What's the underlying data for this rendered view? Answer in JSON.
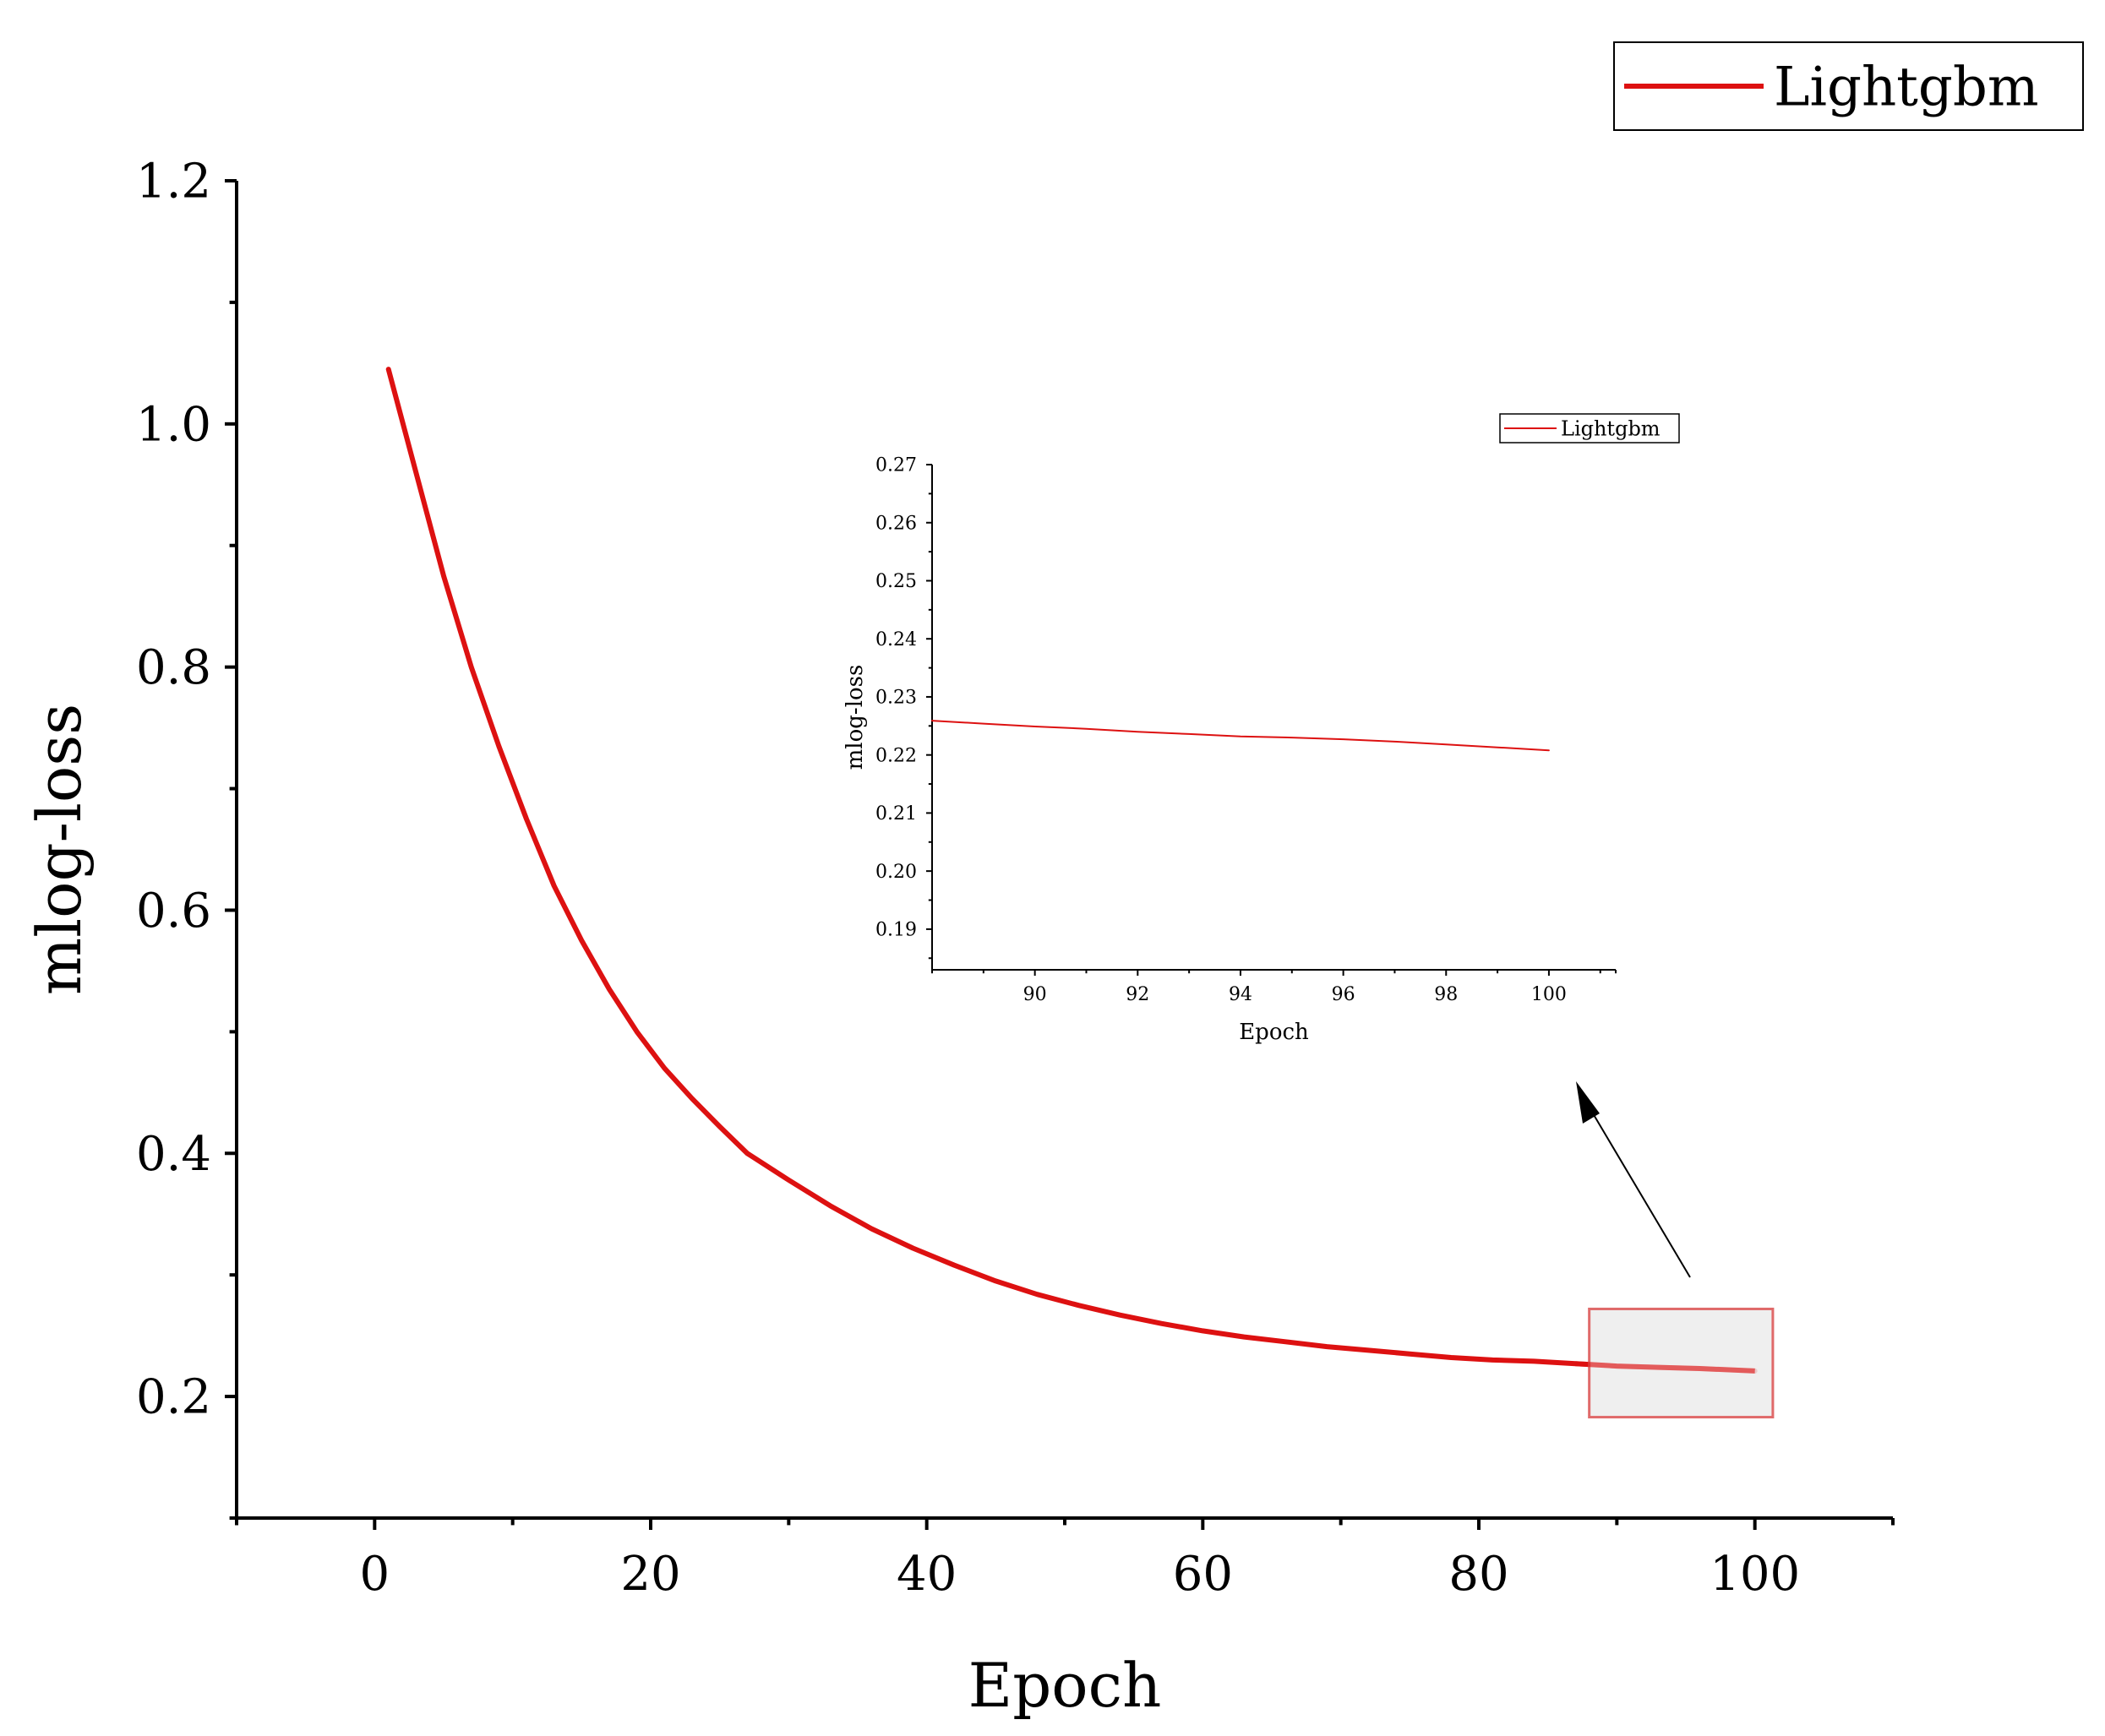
{
  "chart_data": [
    {
      "id": "main",
      "type": "line",
      "xlabel": "Epoch",
      "ylabel": "mlog-loss",
      "xlim": [
        -10,
        110
      ],
      "ylim": [
        0.1,
        1.2
      ],
      "xticks": [
        0,
        20,
        40,
        60,
        80,
        100
      ],
      "xtick_labels": [
        "0",
        "20",
        "40",
        "60",
        "80",
        "100"
      ],
      "yticks": [
        0.2,
        0.4,
        0.6,
        0.8,
        1.0,
        1.2
      ],
      "ytick_labels": [
        "0.2",
        "0.4",
        "0.6",
        "0.8",
        "1.0",
        "1.2"
      ],
      "legend_position": "top-right",
      "grid": false,
      "series": [
        {
          "name": "Lightgbm",
          "color": "#dd1111",
          "x": [
            1,
            3,
            5,
            7,
            9,
            11,
            13,
            15,
            17,
            19,
            21,
            23,
            25,
            27,
            30,
            33,
            36,
            39,
            42,
            45,
            48,
            51,
            54,
            57,
            60,
            63,
            66,
            69,
            72,
            75,
            78,
            81,
            84,
            87,
            90,
            93,
            96,
            100
          ],
          "y": [
            1.045,
            0.96,
            0.875,
            0.8,
            0.735,
            0.675,
            0.62,
            0.575,
            0.535,
            0.5,
            0.47,
            0.445,
            0.422,
            0.4,
            0.378,
            0.357,
            0.338,
            0.322,
            0.308,
            0.295,
            0.284,
            0.275,
            0.267,
            0.26,
            0.254,
            0.249,
            0.245,
            0.241,
            0.238,
            0.235,
            0.232,
            0.23,
            0.229,
            0.227,
            0.225,
            0.224,
            0.223,
            0.221
          ]
        }
      ],
      "zoom_region": {
        "xrange": [
          88,
          101.3
        ],
        "yrange": [
          0.183,
          0.272
        ]
      }
    },
    {
      "id": "inset",
      "type": "line",
      "xlabel": "Epoch",
      "ylabel": "mlog-loss",
      "xlim": [
        88,
        101.3
      ],
      "ylim": [
        0.183,
        0.27
      ],
      "xticks": [
        90,
        92,
        94,
        96,
        98,
        100
      ],
      "xtick_labels": [
        "90",
        "92",
        "94",
        "96",
        "98",
        "100"
      ],
      "yticks": [
        0.19,
        0.2,
        0.21,
        0.22,
        0.23,
        0.24,
        0.25,
        0.26,
        0.27
      ],
      "ytick_labels": [
        "0.19",
        "0.20",
        "0.21",
        "0.22",
        "0.23",
        "0.24",
        "0.25",
        "0.26",
        "0.27"
      ],
      "legend_position": "top-right",
      "grid": false,
      "series": [
        {
          "name": "Lightgbm",
          "color": "#dd1111",
          "x": [
            88,
            89,
            90,
            91,
            92,
            93,
            94,
            95,
            96,
            97,
            98,
            99,
            100
          ],
          "y": [
            0.2259,
            0.2254,
            0.2249,
            0.2245,
            0.224,
            0.2236,
            0.2232,
            0.223,
            0.2227,
            0.2223,
            0.2218,
            0.2213,
            0.2208
          ]
        }
      ]
    }
  ],
  "colors": {
    "line": "#dd1111",
    "axis": "#000000",
    "zoom_box_fill": "#ececec",
    "zoom_box_stroke": "#e06a6a"
  }
}
